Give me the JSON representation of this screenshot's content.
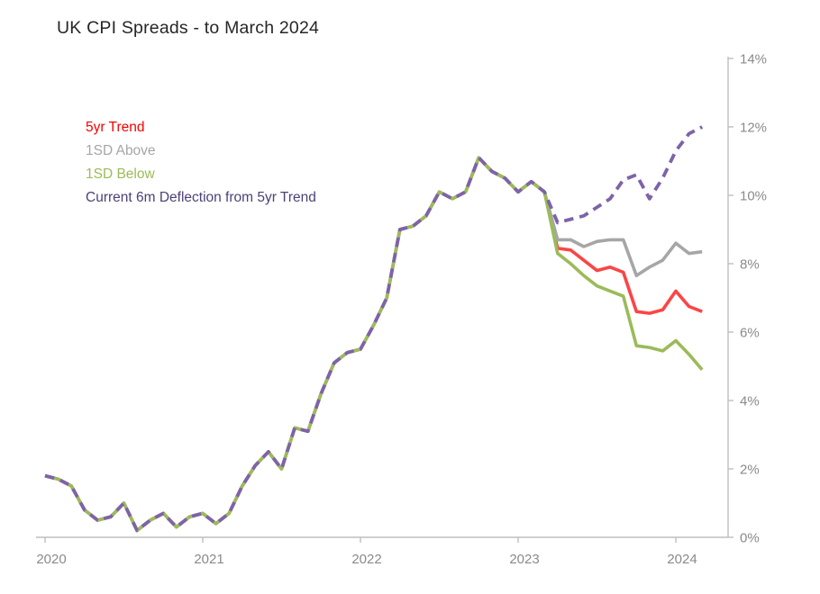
{
  "page": {
    "background": "#FFFFFF"
  },
  "chart_data": {
    "type": "line",
    "title": "UK CPI Spreads - to March 2024",
    "x_start_month": "2020-01",
    "x_end_month": "2024-03",
    "x_interval": "monthly",
    "x_tick_labels": [
      "2020",
      "2021",
      "2022",
      "2023",
      "2024"
    ],
    "y_tick_labels": [
      "0%",
      "2%",
      "4%",
      "6%",
      "8%",
      "10%",
      "12%",
      "14%"
    ],
    "ylim": [
      0,
      14
    ],
    "y_axis_side": "right",
    "grid": false,
    "legend_position": "inside-top-left",
    "axis_color": "#BFBFBF",
    "tick_label_color": "#8A8A8A",
    "title_color": "#262626",
    "series": [
      {
        "name": "5yr Trend",
        "color": "#FB4545",
        "label_color": "#F80000",
        "dashed": false,
        "values": [
          1.8,
          1.7,
          1.5,
          0.8,
          0.5,
          0.6,
          1.0,
          0.2,
          0.5,
          0.7,
          0.3,
          0.6,
          0.7,
          0.4,
          0.7,
          1.5,
          2.1,
          2.5,
          2.0,
          3.2,
          3.1,
          4.2,
          5.1,
          5.4,
          5.5,
          6.2,
          7.0,
          9.0,
          9.1,
          9.4,
          10.1,
          9.9,
          10.1,
          11.1,
          10.7,
          10.5,
          10.1,
          10.4,
          10.1,
          8.45,
          8.4,
          8.1,
          7.8,
          7.9,
          7.75,
          6.6,
          6.55,
          6.65,
          7.2,
          6.75,
          6.6
        ]
      },
      {
        "name": "1SD Above",
        "color": "#A6A6A6",
        "label_color": "#A6A6A6",
        "dashed": false,
        "values": [
          1.8,
          1.7,
          1.5,
          0.8,
          0.5,
          0.6,
          1.0,
          0.2,
          0.5,
          0.7,
          0.3,
          0.6,
          0.7,
          0.4,
          0.7,
          1.5,
          2.1,
          2.5,
          2.0,
          3.2,
          3.1,
          4.2,
          5.1,
          5.4,
          5.5,
          6.2,
          7.0,
          9.0,
          9.1,
          9.4,
          10.1,
          9.9,
          10.1,
          11.1,
          10.7,
          10.5,
          10.1,
          10.4,
          10.1,
          8.7,
          8.7,
          8.5,
          8.65,
          8.7,
          8.7,
          7.65,
          7.9,
          8.1,
          8.6,
          8.3,
          8.35
        ]
      },
      {
        "name": "1SD Below",
        "color": "#9BBB59",
        "label_color": "#9BBB59",
        "dashed": false,
        "values": [
          1.8,
          1.7,
          1.5,
          0.8,
          0.5,
          0.6,
          1.0,
          0.2,
          0.5,
          0.7,
          0.3,
          0.6,
          0.7,
          0.4,
          0.7,
          1.5,
          2.1,
          2.5,
          2.0,
          3.2,
          3.1,
          4.2,
          5.1,
          5.4,
          5.5,
          6.2,
          7.0,
          9.0,
          9.1,
          9.4,
          10.1,
          9.9,
          10.1,
          11.1,
          10.7,
          10.5,
          10.1,
          10.4,
          10.1,
          8.3,
          8.0,
          7.65,
          7.35,
          7.2,
          7.05,
          5.6,
          5.55,
          5.45,
          5.75,
          5.35,
          4.9
        ]
      },
      {
        "name": "Current 6m Deflection from 5yr Trend",
        "color": "#7E63A8",
        "label_color": "#4C4178",
        "dashed": true,
        "values": [
          1.8,
          1.7,
          1.5,
          0.8,
          0.5,
          0.6,
          1.0,
          0.2,
          0.5,
          0.7,
          0.3,
          0.6,
          0.7,
          0.4,
          0.7,
          1.5,
          2.1,
          2.5,
          2.0,
          3.2,
          3.1,
          4.2,
          5.1,
          5.4,
          5.5,
          6.2,
          7.0,
          9.0,
          9.1,
          9.4,
          10.1,
          9.9,
          10.1,
          11.1,
          10.7,
          10.5,
          10.1,
          10.4,
          10.1,
          9.2,
          9.3,
          9.4,
          9.65,
          9.9,
          10.45,
          10.6,
          9.9,
          10.5,
          11.3,
          11.8,
          12.0
        ]
      }
    ]
  }
}
